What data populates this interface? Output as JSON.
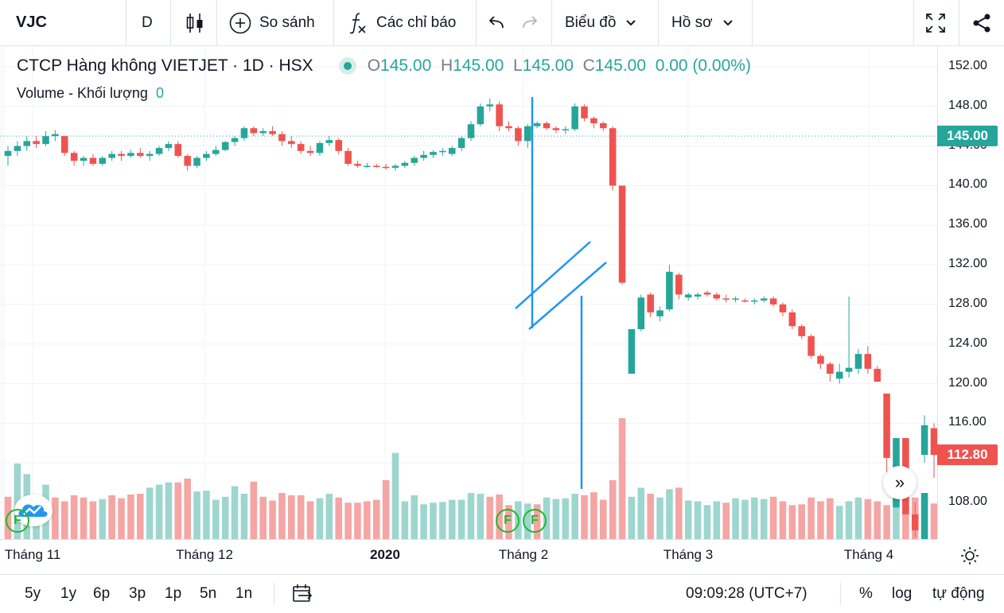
{
  "toolbar": {
    "symbol": "VJC",
    "interval": "D",
    "compare_label": "So sánh",
    "indicators_label": "Các chỉ báo",
    "chart_label": "Biểu đồ",
    "profile_label": "Hồ sơ"
  },
  "legend": {
    "title": "CTCP Hàng không VIETJET · 1D · HSX",
    "o_label": "O",
    "o_value": "145.00",
    "h_label": "H",
    "h_value": "145.00",
    "l_label": "L",
    "l_value": "145.00",
    "c_label": "C",
    "c_value": "145.00",
    "change": "0.00 (0.00%)",
    "volume_label": "Volume - Khối lượng",
    "volume_value": "0"
  },
  "price_axis": {
    "ticks": [
      "152.00",
      "148.00",
      "144.00",
      "140.00",
      "136.00",
      "132.00",
      "128.00",
      "124.00",
      "120.00",
      "116.00",
      "112.00",
      "108.00"
    ],
    "last_price_tag": "145.00",
    "current_price_tag": "112.80"
  },
  "time_axis": {
    "labels": [
      "Tháng 11",
      "Tháng 12",
      "2020",
      "Tháng 2",
      "Tháng 3",
      "Tháng 4"
    ]
  },
  "markers": {
    "f1": "F",
    "f2": "F",
    "f3": "F"
  },
  "bottom": {
    "ranges": [
      "5y",
      "1y",
      "6p",
      "3p",
      "1p",
      "5n",
      "1n"
    ],
    "clock": "09:09:28 (UTC+7)",
    "percent": "%",
    "log": "log",
    "auto": "tự động"
  },
  "colors": {
    "up": "#26a69a",
    "down": "#ef5350",
    "vol_up": "#9dd6cf",
    "vol_down": "#f4a5a4",
    "annotation": "#2196f3"
  },
  "chart_data": {
    "type": "candlestick",
    "ylim": [
      104.8,
      153.5
    ],
    "candles": [
      [
        143,
        144,
        142,
        143.5
      ],
      [
        143.5,
        144.5,
        143,
        144
      ],
      [
        144,
        145,
        143.5,
        144.5
      ],
      [
        144.5,
        145,
        143.8,
        144.2
      ],
      [
        144.2,
        145.5,
        144,
        145
      ],
      [
        145,
        145.6,
        144.5,
        145.2
      ],
      [
        145,
        145,
        143,
        143.3
      ],
      [
        143.3,
        143.5,
        142,
        142.5
      ],
      [
        142.5,
        143,
        142,
        142.8
      ],
      [
        142.8,
        143.2,
        142,
        142.2
      ],
      [
        142.2,
        143,
        142,
        142.8
      ],
      [
        142.8,
        143.5,
        142.5,
        143.2
      ],
      [
        143.2,
        143.5,
        142.5,
        143
      ],
      [
        143,
        143.6,
        142.8,
        143.3
      ],
      [
        143.3,
        143.8,
        142.8,
        143
      ],
      [
        143,
        143.5,
        142.5,
        143.2
      ],
      [
        143.2,
        144,
        143,
        143.8
      ],
      [
        143.8,
        144.5,
        143.5,
        144.2
      ],
      [
        144.2,
        144.5,
        142.8,
        143
      ],
      [
        143,
        143.2,
        141.5,
        142
      ],
      [
        142,
        143,
        141.8,
        142.8
      ],
      [
        142.8,
        143.5,
        142.5,
        143.2
      ],
      [
        143.2,
        144,
        143,
        143.6
      ],
      [
        143.6,
        144.5,
        143.5,
        144.4
      ],
      [
        144.4,
        145,
        144,
        144.8
      ],
      [
        144.8,
        146,
        144.5,
        145.8
      ],
      [
        145.8,
        146,
        145,
        145.3
      ],
      [
        145.3,
        145.8,
        145,
        145.5
      ],
      [
        145.5,
        146,
        145,
        145.2
      ],
      [
        145.2,
        145.5,
        144,
        144.5
      ],
      [
        144.5,
        145,
        143.8,
        144.2
      ],
      [
        144.2,
        144.5,
        143.2,
        143.5
      ],
      [
        143.5,
        144,
        143,
        143.3
      ],
      [
        143.3,
        144.5,
        143,
        144.3
      ],
      [
        144.3,
        145,
        144,
        144.6
      ],
      [
        144.6,
        144.8,
        143.2,
        143.5
      ],
      [
        143.5,
        143.8,
        142,
        142.2
      ],
      [
        142.2,
        142.5,
        141.8,
        142
      ],
      [
        142,
        142.3,
        141.8,
        142
      ],
      [
        142,
        142.2,
        141.8,
        141.9
      ],
      [
        141.9,
        142.2,
        141.6,
        141.8
      ],
      [
        141.8,
        142.2,
        141.5,
        142
      ],
      [
        142,
        142.5,
        141.8,
        142.3
      ],
      [
        142.3,
        143,
        142,
        142.8
      ],
      [
        142.8,
        143.5,
        142.5,
        143.1
      ],
      [
        143.1,
        143.6,
        142.8,
        143.4
      ],
      [
        143.4,
        143.8,
        143,
        143.5
      ],
      [
        143.2,
        144,
        143,
        143.8
      ],
      [
        143.8,
        145,
        143.5,
        144.8
      ],
      [
        144.8,
        146.5,
        144.5,
        146.2
      ],
      [
        146.2,
        148.3,
        146,
        148
      ],
      [
        148,
        148.8,
        147.5,
        148.2
      ],
      [
        148.2,
        148.5,
        145.5,
        146
      ],
      [
        146,
        146.5,
        145.5,
        145.8
      ],
      [
        145.8,
        146,
        144,
        144.5
      ],
      [
        144.5,
        146.2,
        143.8,
        146
      ],
      [
        146,
        146.5,
        145.8,
        146.3
      ],
      [
        146.3,
        146.5,
        145.6,
        145.8
      ],
      [
        145.8,
        146,
        145.3,
        145.6
      ],
      [
        145.6,
        146,
        145.2,
        145.7
      ],
      [
        145.7,
        148.3,
        145.5,
        148
      ],
      [
        148,
        148.2,
        146.5,
        146.8
      ],
      [
        146.8,
        147,
        145.8,
        146.3
      ],
      [
        146.3,
        146.5,
        145.5,
        145.8
      ],
      [
        145.8,
        146,
        139.5,
        140
      ],
      [
        140,
        140,
        130,
        130.2
      ],
      [
        121,
        125.5,
        121,
        125.5
      ],
      [
        125.5,
        129,
        125.3,
        128.7
      ],
      [
        129,
        129.2,
        126.7,
        127.2
      ],
      [
        126.8,
        127.8,
        126.3,
        127.4
      ],
      [
        127.5,
        132,
        127.3,
        131.3
      ],
      [
        131,
        131.2,
        128.5,
        129
      ],
      [
        128.7,
        129.2,
        128.4,
        129
      ],
      [
        128.8,
        129.2,
        128.5,
        129
      ],
      [
        129.2,
        129.4,
        128.8,
        129
      ],
      [
        129,
        129.2,
        128.4,
        128.6
      ],
      [
        128.6,
        129,
        128.2,
        128.5
      ],
      [
        128.5,
        128.8,
        128.2,
        128.6
      ],
      [
        128.4,
        128.6,
        128.2,
        128.3
      ],
      [
        128.3,
        128.6,
        128,
        128.4
      ],
      [
        128.4,
        128.8,
        128.2,
        128.6
      ],
      [
        128.6,
        128.8,
        127.8,
        128
      ],
      [
        128,
        128.2,
        126.8,
        127.2
      ],
      [
        127.2,
        127.5,
        125.5,
        125.8
      ],
      [
        125.8,
        126,
        124.5,
        124.8
      ],
      [
        124.8,
        125,
        122.5,
        122.8
      ],
      [
        122.8,
        123,
        121.5,
        122
      ],
      [
        122,
        122.2,
        120.2,
        121
      ],
      [
        120.5,
        122,
        120,
        121.2
      ],
      [
        121.2,
        128.8,
        120.6,
        121.6
      ],
      [
        121.5,
        123.5,
        121,
        123
      ],
      [
        123,
        123.8,
        121,
        121.5
      ],
      [
        121.5,
        121.8,
        120.2,
        120.2
      ],
      [
        119,
        119,
        111,
        112.5
      ],
      [
        107.5,
        114.5,
        107.5,
        114.5
      ],
      [
        114.5,
        114.5,
        106.8,
        106.8
      ],
      [
        106.8,
        108,
        104.5,
        105.2
      ],
      [
        112.8,
        116.8,
        112,
        115.8
      ],
      [
        115.5,
        116,
        110.5,
        112.8
      ]
    ],
    "volume_direction": [
      "down",
      "up",
      "up",
      "up",
      "up",
      "down",
      "down",
      "down",
      "down",
      "down",
      "up",
      "down",
      "down",
      "down",
      "down",
      "up",
      "up",
      "up",
      "down",
      "down",
      "up",
      "up",
      "up",
      "up",
      "up",
      "up",
      "down",
      "down",
      "down",
      "down",
      "down",
      "down",
      "down",
      "up",
      "up",
      "down",
      "down",
      "down",
      "down",
      "down",
      "down",
      "up",
      "up",
      "up",
      "up",
      "up",
      "up",
      "up",
      "up",
      "up",
      "up",
      "down",
      "down",
      "down",
      "up",
      "up",
      "down",
      "up",
      "up",
      "up",
      "up",
      "down",
      "down",
      "down",
      "down",
      "down",
      "up",
      "up",
      "down",
      "up",
      "up",
      "down",
      "up",
      "up",
      "up",
      "up",
      "down",
      "up",
      "up",
      "up",
      "up",
      "down",
      "down",
      "down",
      "down",
      "down",
      "down",
      "down",
      "up",
      "up",
      "up",
      "down",
      "down",
      "down",
      "up",
      "down",
      "down",
      "up",
      "down"
    ]
  }
}
